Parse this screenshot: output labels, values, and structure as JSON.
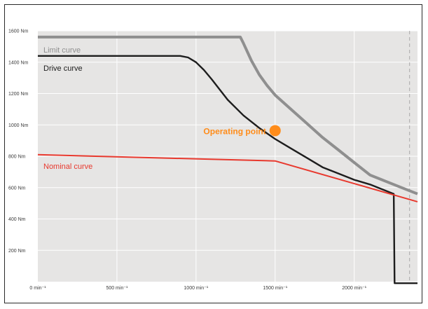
{
  "chart_data": {
    "type": "line",
    "x_ticks": [
      {
        "value": 0,
        "label": "0 min⁻¹"
      },
      {
        "value": 500,
        "label": "500 min⁻¹"
      },
      {
        "value": 1000,
        "label": "1000 min⁻¹"
      },
      {
        "value": 1500,
        "label": "1500 min⁻¹"
      },
      {
        "value": 2000,
        "label": "2000 min⁻¹"
      }
    ],
    "y_ticks": [
      {
        "value": 200,
        "label": "200 Nm"
      },
      {
        "value": 400,
        "label": "400 Nm"
      },
      {
        "value": 600,
        "label": "600 Nm"
      },
      {
        "value": 800,
        "label": "800 Nm"
      },
      {
        "value": 1000,
        "label": "1000 Nm"
      },
      {
        "value": 1200,
        "label": "1200 Nm"
      },
      {
        "value": 1400,
        "label": "1400 Nm"
      },
      {
        "value": 1600,
        "label": "1600 Nm"
      }
    ],
    "xlim": [
      0,
      2400
    ],
    "ylim": [
      0,
      1600
    ],
    "grid": true,
    "series": [
      {
        "name": "Limit curve",
        "color": "#8f8f8f",
        "x": [
          0,
          1280,
          1300,
          1350,
          1400,
          1450,
          1500,
          1600,
          1700,
          1800,
          1900,
          2000,
          2100,
          2200,
          2300,
          2400
        ],
        "y": [
          1560,
          1560,
          1520,
          1410,
          1320,
          1250,
          1190,
          1100,
          1010,
          920,
          840,
          760,
          680,
          640,
          600,
          560
        ]
      },
      {
        "name": "Drive curve",
        "color": "#1d1d1d",
        "x": [
          0,
          900,
          950,
          1000,
          1050,
          1100,
          1200,
          1300,
          1400,
          1500,
          1600,
          1700,
          1800,
          1900,
          2000,
          2100,
          2200,
          2250,
          2255,
          2400
        ],
        "y": [
          1440,
          1440,
          1430,
          1400,
          1350,
          1290,
          1160,
          1060,
          980,
          910,
          850,
          790,
          730,
          690,
          650,
          620,
          580,
          560,
          -10,
          -10
        ]
      },
      {
        "name": "Nominal curve",
        "color": "#e8392e",
        "x": [
          0,
          1500,
          2400
        ],
        "y": [
          810,
          770,
          510
        ]
      }
    ],
    "annotations": [
      {
        "text": "Operating point",
        "x": 1500,
        "y": 950,
        "color": "#ff8c1a"
      }
    ],
    "x_marker": 2350
  }
}
